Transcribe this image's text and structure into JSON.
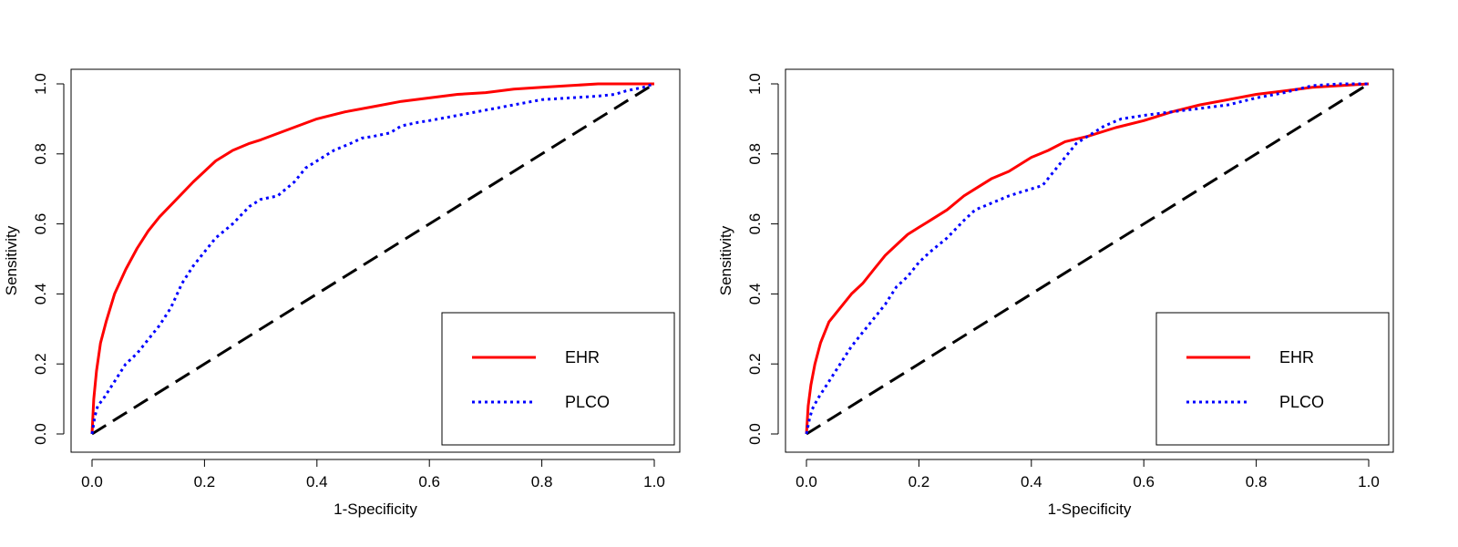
{
  "colors": {
    "ehr": "#ff0000",
    "plco": "#0000ff",
    "reference": "#000000"
  },
  "chart_data": [
    {
      "type": "line",
      "xlabel": "1-Specificity",
      "ylabel": "Sensitivity",
      "xlim": [
        0,
        1
      ],
      "ylim": [
        0,
        1
      ],
      "x_ticks": [
        "0.0",
        "0.2",
        "0.4",
        "0.6",
        "0.8",
        "1.0"
      ],
      "y_ticks": [
        "0.0",
        "0.2",
        "0.4",
        "0.6",
        "0.8",
        "1.0"
      ],
      "grid": false,
      "legend_position": "bottom-right",
      "series": [
        {
          "name": "EHR",
          "style": "solid",
          "points": [
            [
              0,
              0
            ],
            [
              0.003,
              0.1
            ],
            [
              0.008,
              0.18
            ],
            [
              0.015,
              0.26
            ],
            [
              0.025,
              0.32
            ],
            [
              0.04,
              0.4
            ],
            [
              0.06,
              0.47
            ],
            [
              0.08,
              0.53
            ],
            [
              0.1,
              0.58
            ],
            [
              0.12,
              0.62
            ],
            [
              0.15,
              0.67
            ],
            [
              0.18,
              0.72
            ],
            [
              0.2,
              0.75
            ],
            [
              0.22,
              0.78
            ],
            [
              0.25,
              0.81
            ],
            [
              0.28,
              0.83
            ],
            [
              0.3,
              0.84
            ],
            [
              0.35,
              0.87
            ],
            [
              0.4,
              0.9
            ],
            [
              0.45,
              0.92
            ],
            [
              0.5,
              0.935
            ],
            [
              0.55,
              0.95
            ],
            [
              0.6,
              0.96
            ],
            [
              0.65,
              0.97
            ],
            [
              0.7,
              0.975
            ],
            [
              0.75,
              0.985
            ],
            [
              0.8,
              0.99
            ],
            [
              0.85,
              0.995
            ],
            [
              0.9,
              1.0
            ],
            [
              1.0,
              1.0
            ]
          ]
        },
        {
          "name": "PLCO",
          "style": "dotted",
          "points": [
            [
              0,
              0
            ],
            [
              0.005,
              0.05
            ],
            [
              0.01,
              0.08
            ],
            [
              0.02,
              0.1
            ],
            [
              0.04,
              0.15
            ],
            [
              0.06,
              0.2
            ],
            [
              0.08,
              0.23
            ],
            [
              0.1,
              0.27
            ],
            [
              0.12,
              0.31
            ],
            [
              0.14,
              0.36
            ],
            [
              0.16,
              0.43
            ],
            [
              0.18,
              0.48
            ],
            [
              0.2,
              0.52
            ],
            [
              0.22,
              0.56
            ],
            [
              0.25,
              0.6
            ],
            [
              0.28,
              0.65
            ],
            [
              0.3,
              0.67
            ],
            [
              0.33,
              0.68
            ],
            [
              0.36,
              0.72
            ],
            [
              0.38,
              0.76
            ],
            [
              0.4,
              0.78
            ],
            [
              0.43,
              0.81
            ],
            [
              0.46,
              0.83
            ],
            [
              0.48,
              0.845
            ],
            [
              0.5,
              0.85
            ],
            [
              0.53,
              0.86
            ],
            [
              0.55,
              0.88
            ],
            [
              0.58,
              0.89
            ],
            [
              0.6,
              0.895
            ],
            [
              0.65,
              0.91
            ],
            [
              0.7,
              0.925
            ],
            [
              0.75,
              0.94
            ],
            [
              0.8,
              0.955
            ],
            [
              0.85,
              0.96
            ],
            [
              0.9,
              0.965
            ],
            [
              0.93,
              0.97
            ],
            [
              0.95,
              0.98
            ],
            [
              0.98,
              0.99
            ],
            [
              1.0,
              1.0
            ]
          ]
        },
        {
          "name": "",
          "style": "dashed",
          "points": [
            [
              0,
              0
            ],
            [
              1,
              1
            ]
          ]
        }
      ],
      "legend": [
        {
          "label": "EHR",
          "style": "solid"
        },
        {
          "label": "PLCO",
          "style": "dotted"
        }
      ]
    },
    {
      "type": "line",
      "xlabel": "1-Specificity",
      "ylabel": "Sensitivity",
      "xlim": [
        0,
        1
      ],
      "ylim": [
        0,
        1
      ],
      "x_ticks": [
        "0.0",
        "0.2",
        "0.4",
        "0.6",
        "0.8",
        "1.0"
      ],
      "y_ticks": [
        "0.0",
        "0.2",
        "0.4",
        "0.6",
        "0.8",
        "1.0"
      ],
      "grid": false,
      "legend_position": "bottom-right",
      "series": [
        {
          "name": "EHR",
          "style": "solid",
          "points": [
            [
              0,
              0
            ],
            [
              0.003,
              0.08
            ],
            [
              0.008,
              0.14
            ],
            [
              0.015,
              0.2
            ],
            [
              0.025,
              0.26
            ],
            [
              0.04,
              0.32
            ],
            [
              0.06,
              0.36
            ],
            [
              0.08,
              0.4
            ],
            [
              0.1,
              0.43
            ],
            [
              0.12,
              0.47
            ],
            [
              0.14,
              0.51
            ],
            [
              0.16,
              0.54
            ],
            [
              0.18,
              0.57
            ],
            [
              0.2,
              0.59
            ],
            [
              0.22,
              0.61
            ],
            [
              0.25,
              0.64
            ],
            [
              0.28,
              0.68
            ],
            [
              0.3,
              0.7
            ],
            [
              0.33,
              0.73
            ],
            [
              0.36,
              0.75
            ],
            [
              0.4,
              0.79
            ],
            [
              0.43,
              0.81
            ],
            [
              0.46,
              0.835
            ],
            [
              0.5,
              0.85
            ],
            [
              0.55,
              0.875
            ],
            [
              0.6,
              0.895
            ],
            [
              0.65,
              0.92
            ],
            [
              0.7,
              0.94
            ],
            [
              0.75,
              0.955
            ],
            [
              0.8,
              0.97
            ],
            [
              0.85,
              0.98
            ],
            [
              0.9,
              0.99
            ],
            [
              0.95,
              0.995
            ],
            [
              1.0,
              1.0
            ]
          ]
        },
        {
          "name": "PLCO",
          "style": "dotted",
          "points": [
            [
              0,
              0
            ],
            [
              0.005,
              0.04
            ],
            [
              0.01,
              0.07
            ],
            [
              0.02,
              0.1
            ],
            [
              0.04,
              0.15
            ],
            [
              0.06,
              0.2
            ],
            [
              0.08,
              0.25
            ],
            [
              0.1,
              0.29
            ],
            [
              0.12,
              0.33
            ],
            [
              0.14,
              0.37
            ],
            [
              0.16,
              0.42
            ],
            [
              0.18,
              0.45
            ],
            [
              0.2,
              0.49
            ],
            [
              0.22,
              0.52
            ],
            [
              0.25,
              0.56
            ],
            [
              0.28,
              0.61
            ],
            [
              0.3,
              0.64
            ],
            [
              0.33,
              0.66
            ],
            [
              0.36,
              0.68
            ],
            [
              0.38,
              0.69
            ],
            [
              0.4,
              0.7
            ],
            [
              0.42,
              0.71
            ],
            [
              0.44,
              0.75
            ],
            [
              0.46,
              0.79
            ],
            [
              0.48,
              0.83
            ],
            [
              0.5,
              0.85
            ],
            [
              0.53,
              0.88
            ],
            [
              0.56,
              0.9
            ],
            [
              0.6,
              0.91
            ],
            [
              0.65,
              0.92
            ],
            [
              0.7,
              0.93
            ],
            [
              0.75,
              0.94
            ],
            [
              0.8,
              0.96
            ],
            [
              0.85,
              0.975
            ],
            [
              0.9,
              0.995
            ],
            [
              0.95,
              1.0
            ],
            [
              1.0,
              1.0
            ]
          ]
        },
        {
          "name": "",
          "style": "dashed",
          "points": [
            [
              0,
              0
            ],
            [
              1,
              1
            ]
          ]
        }
      ],
      "legend": [
        {
          "label": "EHR",
          "style": "solid"
        },
        {
          "label": "PLCO",
          "style": "dotted"
        }
      ]
    }
  ]
}
